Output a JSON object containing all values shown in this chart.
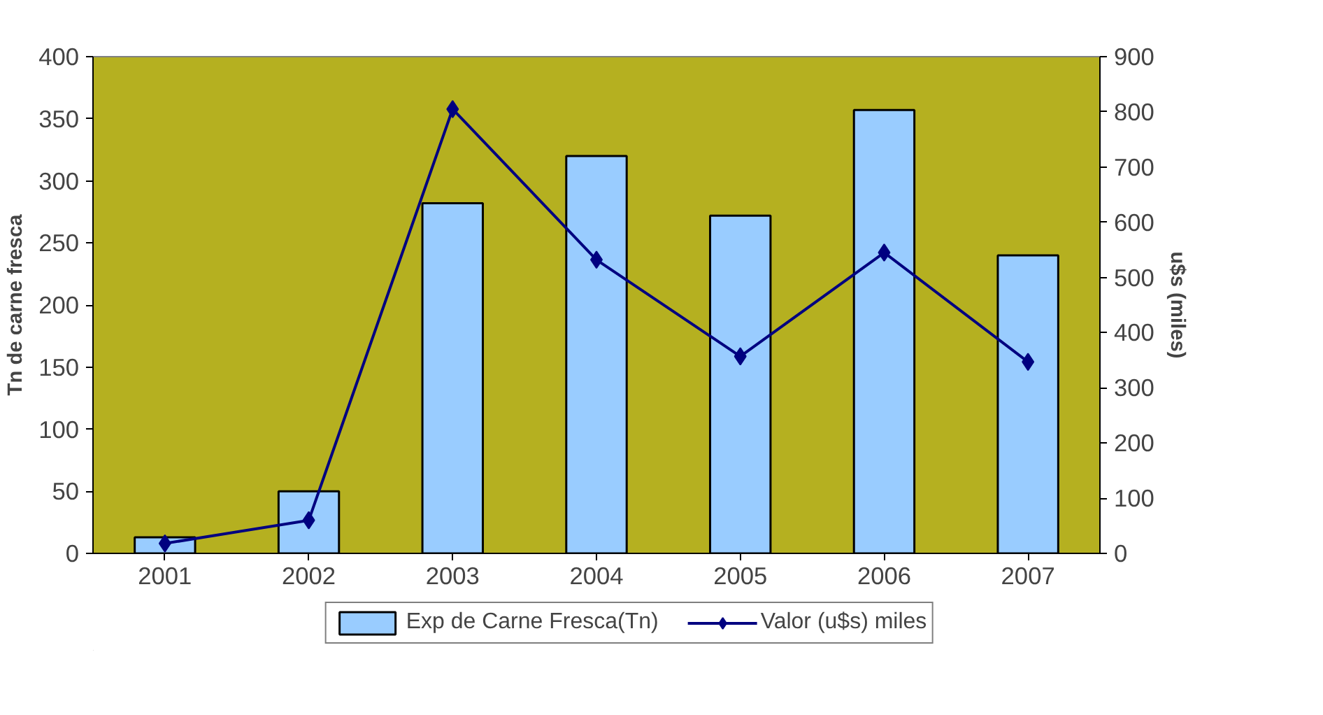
{
  "chart_data": {
    "type": "bar",
    "ylabel": "Tn de carne fresca",
    "y2label": "u$s (miles)",
    "categories": [
      "2001",
      "2002",
      "2003",
      "2004",
      "2005",
      "2006",
      "2007"
    ],
    "series": [
      {
        "name": "Exp de Carne Fresca(Tn)",
        "color": "#99ccff",
        "values": [
          13,
          50,
          282,
          320,
          272,
          357,
          240
        ]
      },
      {
        "name": "Valor (u$s) miles",
        "type": "line",
        "axis": "y2",
        "color": "#000080",
        "marker": "diamond",
        "values": [
          18,
          60,
          805,
          532,
          357,
          545,
          347
        ]
      }
    ],
    "ylim": [
      0,
      400
    ],
    "yticks": [
      0,
      50,
      100,
      150,
      200,
      250,
      300,
      350,
      400
    ],
    "y2lim": [
      0,
      900
    ],
    "y2ticks": [
      0,
      100,
      200,
      300,
      400,
      500,
      600,
      700,
      800,
      900
    ],
    "grid": false,
    "legend": "bottom"
  }
}
